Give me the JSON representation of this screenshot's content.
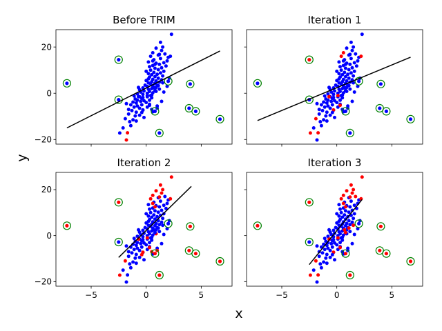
{
  "figure": {
    "xlabel": "x",
    "ylabel": "y"
  },
  "colors": {
    "inlier": "#0000ff",
    "trimmed": "#ff0000",
    "outlier_ring": "#008000",
    "fit_line": "#000000"
  },
  "chart_data": [
    {
      "type": "scatter",
      "title": "Before TRIM",
      "xlim": [
        -8.2,
        7.8
      ],
      "ylim": [
        -22,
        27.5
      ],
      "xticks": [
        -5,
        0,
        5
      ],
      "yticks": [
        -20,
        0,
        20
      ],
      "xtick_labels": [
        "−5",
        "0",
        "5"
      ],
      "ytick_labels": [
        "−20",
        "0",
        "20"
      ],
      "fit_line": [
        [
          -7.2,
          -15
        ],
        [
          6.7,
          18.3
        ]
      ]
    },
    {
      "type": "scatter",
      "title": "Iteration 1",
      "xlim": [
        -8.2,
        7.8
      ],
      "ylim": [
        -22,
        27.5
      ],
      "xticks": [
        -5,
        0,
        5
      ],
      "yticks": [
        -20,
        0,
        20
      ],
      "xtick_labels": [
        "−5",
        "0",
        "5"
      ],
      "ytick_labels": [
        "−20",
        "0",
        "20"
      ],
      "fit_line": [
        [
          -7.2,
          -11.8
        ],
        [
          6.7,
          15.6
        ]
      ]
    },
    {
      "type": "scatter",
      "title": "Iteration 2",
      "xlim": [
        -8.2,
        7.8
      ],
      "ylim": [
        -22,
        27.5
      ],
      "xticks": [
        -5,
        0,
        5
      ],
      "yticks": [
        -20,
        0,
        20
      ],
      "xtick_labels": [
        "−5",
        "0",
        "5"
      ],
      "ytick_labels": [
        "−20",
        "0",
        "20"
      ],
      "fit_line": [
        [
          -2.5,
          -9.5
        ],
        [
          4.1,
          21.4
        ]
      ]
    },
    {
      "type": "scatter",
      "title": "Iteration 3",
      "xlim": [
        -8.2,
        7.8
      ],
      "ylim": [
        -22,
        27.5
      ],
      "xticks": [
        -5,
        0,
        5
      ],
      "yticks": [
        -20,
        0,
        20
      ],
      "xtick_labels": [
        "−5",
        "0",
        "5"
      ],
      "ytick_labels": [
        "−20",
        "0",
        "20"
      ],
      "fit_line": [
        [
          -2.5,
          -12.6
        ],
        [
          2.3,
          15.7
        ]
      ]
    }
  ],
  "points": [
    [
      -2.4,
      -17.2,
      1,
      0,
      0,
      0
    ],
    [
      -1.8,
      -20.2,
      0,
      1,
      1,
      1
    ],
    [
      -1.7,
      -17.1,
      0,
      0,
      1,
      0
    ],
    [
      -2.1,
      -15.0,
      1,
      1,
      1,
      1
    ],
    [
      -1.5,
      -12.3,
      1,
      1,
      1,
      1
    ],
    [
      -1.2,
      -11.5,
      1,
      1,
      1,
      1
    ],
    [
      -1.9,
      -11.0,
      1,
      0,
      0,
      0
    ],
    [
      -1.0,
      -9.8,
      1,
      1,
      1,
      1
    ],
    [
      -0.6,
      -9.5,
      1,
      1,
      1,
      1
    ],
    [
      -1.6,
      -9.0,
      1,
      1,
      1,
      1
    ],
    [
      -0.9,
      -8.2,
      1,
      1,
      1,
      1
    ],
    [
      -1.3,
      -7.5,
      1,
      1,
      1,
      1
    ],
    [
      -0.3,
      -7.3,
      1,
      1,
      1,
      1
    ],
    [
      -1.6,
      -7.0,
      1,
      1,
      1,
      1
    ],
    [
      -0.6,
      -6.5,
      1,
      1,
      1,
      1
    ],
    [
      -1.1,
      -6.0,
      1,
      1,
      1,
      1
    ],
    [
      0.1,
      -6.0,
      1,
      1,
      1,
      1
    ],
    [
      -0.8,
      -5.5,
      1,
      1,
      1,
      1
    ],
    [
      -1.4,
      -5.0,
      1,
      1,
      1,
      1
    ],
    [
      -0.4,
      -5.0,
      1,
      1,
      1,
      1
    ],
    [
      0.3,
      -4.8,
      1,
      1,
      1,
      1
    ],
    [
      -0.9,
      -4.2,
      1,
      1,
      1,
      1
    ],
    [
      0.0,
      -4.0,
      1,
      1,
      1,
      1
    ],
    [
      -1.2,
      -3.8,
      1,
      1,
      1,
      1
    ],
    [
      -0.5,
      -3.5,
      1,
      1,
      1,
      1
    ],
    [
      -0.2,
      -3.2,
      1,
      1,
      1,
      1
    ],
    [
      -0.8,
      -3.0,
      1,
      1,
      1,
      1
    ],
    [
      0.3,
      -3.0,
      1,
      1,
      1,
      1
    ],
    [
      -1.0,
      -2.5,
      1,
      1,
      1,
      1
    ],
    [
      -0.4,
      -2.2,
      1,
      1,
      1,
      1
    ],
    [
      0.5,
      -2.0,
      1,
      1,
      1,
      1
    ],
    [
      -0.6,
      -1.5,
      1,
      1,
      1,
      1
    ],
    [
      0.1,
      -1.5,
      1,
      1,
      1,
      1
    ],
    [
      -1.1,
      -1.2,
      1,
      1,
      1,
      1
    ],
    [
      0.4,
      -1.0,
      1,
      1,
      1,
      1
    ],
    [
      -0.3,
      -0.5,
      1,
      1,
      1,
      1
    ],
    [
      -0.8,
      -0.3,
      1,
      1,
      1,
      1
    ],
    [
      0.1,
      0.0,
      1,
      1,
      1,
      1
    ],
    [
      0.6,
      0.2,
      1,
      1,
      1,
      1
    ],
    [
      -0.5,
      0.5,
      1,
      1,
      1,
      1
    ],
    [
      0.3,
      0.8,
      1,
      1,
      1,
      1
    ],
    [
      -0.2,
      1.0,
      1,
      1,
      1,
      1
    ],
    [
      0.8,
      1.0,
      1,
      1,
      1,
      1
    ],
    [
      -0.6,
      1.5,
      1,
      1,
      1,
      1
    ],
    [
      0.2,
      1.7,
      1,
      1,
      1,
      1
    ],
    [
      0.5,
      2.0,
      1,
      1,
      1,
      1
    ],
    [
      -0.3,
      2.3,
      1,
      1,
      1,
      1
    ],
    [
      0.9,
      2.5,
      1,
      1,
      1,
      1
    ],
    [
      0.1,
      3.0,
      1,
      1,
      1,
      1
    ],
    [
      0.6,
      3.2,
      1,
      1,
      1,
      1
    ],
    [
      -0.1,
      3.5,
      1,
      1,
      1,
      1
    ],
    [
      1.0,
      3.5,
      1,
      1,
      1,
      1
    ],
    [
      0.4,
      4.0,
      1,
      1,
      1,
      1
    ],
    [
      0.8,
      4.3,
      1,
      1,
      1,
      1
    ],
    [
      0.2,
      4.5,
      1,
      1,
      1,
      1
    ],
    [
      1.2,
      4.8,
      1,
      1,
      1,
      1
    ],
    [
      0.5,
      5.0,
      1,
      1,
      1,
      1
    ],
    [
      0.9,
      5.3,
      1,
      1,
      1,
      1
    ],
    [
      0.0,
      5.5,
      1,
      1,
      1,
      1
    ],
    [
      1.4,
      5.8,
      1,
      1,
      1,
      1
    ],
    [
      0.6,
      6.0,
      1,
      1,
      1,
      1
    ],
    [
      1.1,
      6.5,
      1,
      1,
      1,
      1
    ],
    [
      0.3,
      7.0,
      1,
      1,
      1,
      1
    ],
    [
      0.8,
      7.2,
      1,
      1,
      1,
      1
    ],
    [
      1.5,
      7.5,
      1,
      1,
      1,
      1
    ],
    [
      0.5,
      8.0,
      1,
      1,
      1,
      1
    ],
    [
      1.0,
      8.2,
      1,
      1,
      1,
      1
    ],
    [
      0.2,
      8.5,
      1,
      1,
      1,
      1
    ],
    [
      1.3,
      8.8,
      1,
      1,
      1,
      1
    ],
    [
      0.7,
      9.0,
      1,
      1,
      1,
      1
    ],
    [
      1.6,
      9.5,
      1,
      1,
      1,
      1
    ],
    [
      0.4,
      10.0,
      1,
      1,
      1,
      1
    ],
    [
      1.1,
      10.2,
      1,
      1,
      1,
      1
    ],
    [
      0.8,
      10.8,
      1,
      1,
      1,
      1
    ],
    [
      1.4,
      11.0,
      1,
      1,
      1,
      1
    ],
    [
      0.3,
      11.5,
      1,
      1,
      1,
      1
    ],
    [
      1.8,
      11.8,
      1,
      1,
      1,
      1
    ],
    [
      0.6,
      12.0,
      1,
      1,
      1,
      1
    ],
    [
      1.2,
      12.5,
      1,
      1,
      1,
      1
    ],
    [
      0.9,
      13.0,
      1,
      1,
      1,
      1
    ],
    [
      1.6,
      13.2,
      1,
      1,
      1,
      1
    ],
    [
      0.2,
      13.5,
      1,
      1,
      1,
      1
    ],
    [
      1.9,
      14.0,
      1,
      1,
      1,
      1
    ],
    [
      0.7,
      14.5,
      1,
      1,
      1,
      1
    ],
    [
      1.3,
      15.0,
      1,
      1,
      1,
      1
    ],
    [
      2.0,
      15.5,
      1,
      1,
      1,
      1
    ],
    [
      0.4,
      16.0,
      1,
      0,
      0,
      0
    ],
    [
      1.1,
      16.5,
      1,
      1,
      1,
      1
    ],
    [
      1.7,
      17.0,
      1,
      1,
      1,
      0
    ],
    [
      0.6,
      17.5,
      1,
      0,
      0,
      0
    ],
    [
      2.2,
      16.0,
      1,
      0,
      0,
      0
    ],
    [
      1.4,
      18.5,
      1,
      1,
      0,
      0
    ],
    [
      0.9,
      19.5,
      1,
      1,
      0,
      0
    ],
    [
      1.5,
      20.0,
      1,
      1,
      0,
      0
    ],
    [
      1.3,
      22.0,
      1,
      1,
      0,
      0
    ],
    [
      2.3,
      25.5,
      1,
      1,
      0,
      0
    ],
    [
      -0.2,
      -10.5,
      1,
      1,
      1,
      1
    ],
    [
      0.6,
      -8.0,
      1,
      1,
      1,
      1
    ],
    [
      1.0,
      -5.5,
      1,
      1,
      1,
      1
    ],
    [
      1.4,
      -3.5,
      1,
      1,
      1,
      1
    ],
    [
      1.6,
      0.5,
      1,
      1,
      1,
      1
    ],
    [
      1.9,
      3.0,
      1,
      1,
      1,
      1
    ],
    [
      2.1,
      6.5,
      1,
      1,
      1,
      1
    ],
    [
      -1.4,
      -14.0,
      1,
      1,
      1,
      1
    ],
    [
      -0.9,
      -12.0,
      1,
      1,
      1,
      1
    ],
    [
      -0.3,
      -1.8,
      1,
      1,
      1,
      1
    ],
    [
      0.2,
      6.2,
      1,
      1,
      1,
      1
    ],
    [
      0.5,
      -0.8,
      1,
      1,
      1,
      1
    ],
    [
      -0.7,
      2.5,
      1,
      1,
      1,
      1
    ],
    [
      1.2,
      1.8,
      1,
      1,
      1,
      1
    ],
    [
      -1.8,
      -4.5,
      1,
      1,
      1,
      1
    ],
    [
      0.0,
      9.5,
      1,
      1,
      1,
      1
    ],
    [
      -0.3,
      -7.2,
      1,
      0,
      0,
      0
    ],
    [
      0.3,
      -5.2,
      1,
      0,
      0,
      0
    ],
    [
      0.1,
      -1.0,
      1,
      0,
      0,
      0
    ],
    [
      -0.7,
      -1.5,
      1,
      0,
      0,
      0
    ],
    [
      -0.4,
      -8.3,
      1,
      1,
      0,
      1
    ],
    [
      0.5,
      -7.0,
      1,
      1,
      0,
      1
    ],
    [
      1.0,
      -6.5,
      1,
      1,
      0,
      1
    ],
    [
      0.9,
      0.8,
      1,
      1,
      0,
      1
    ],
    [
      0.8,
      1.3,
      1,
      1,
      1,
      0
    ],
    [
      0.7,
      2.5,
      1,
      1,
      1,
      0
    ],
    [
      1.1,
      3.3,
      1,
      1,
      1,
      0
    ],
    [
      1.5,
      4.5,
      1,
      1,
      1,
      0
    ],
    [
      0.6,
      14.0,
      1,
      1,
      0,
      0
    ],
    [
      0.8,
      12.5,
      1,
      1,
      0,
      0
    ],
    [
      1.2,
      16.8,
      1,
      1,
      0,
      0
    ]
  ],
  "outliers": [
    [
      -7.2,
      4.3,
      1,
      1,
      0,
      0
    ],
    [
      -2.5,
      14.5,
      1,
      0,
      0,
      0
    ],
    [
      -2.5,
      -2.8,
      1,
      1,
      1,
      1
    ],
    [
      0.8,
      -7.8,
      1,
      1,
      0,
      0
    ],
    [
      1.2,
      -17.2,
      1,
      1,
      0,
      0
    ],
    [
      2.0,
      5.2,
      1,
      1,
      1,
      1
    ],
    [
      3.9,
      -6.5,
      1,
      1,
      0,
      0
    ],
    [
      4.0,
      4.0,
      1,
      1,
      0,
      0
    ],
    [
      4.5,
      -7.8,
      1,
      1,
      0,
      0
    ],
    [
      6.7,
      -11.2,
      1,
      1,
      0,
      0
    ]
  ]
}
